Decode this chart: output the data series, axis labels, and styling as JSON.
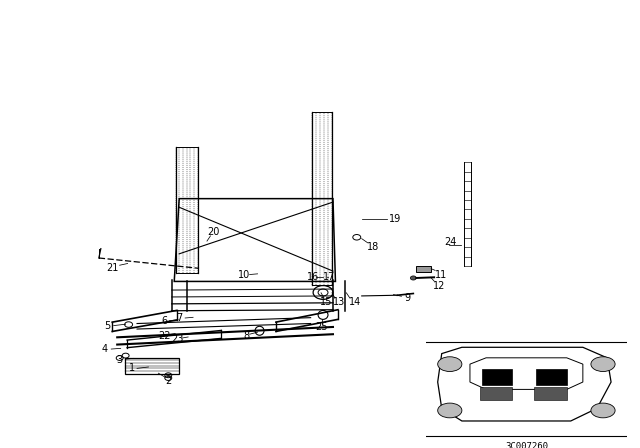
{
  "bg_color": "#ffffff",
  "line_color": "#000000",
  "watermark": "3C007260",
  "figure_width": 6.4,
  "figure_height": 4.48,
  "dpi": 100,
  "labels_data": [
    [
      1,
      0.105,
      0.088,
      0.115,
      0.088,
      0.138,
      0.092
    ],
    [
      2,
      0.178,
      0.052,
      0.172,
      0.062,
      0.158,
      0.074
    ],
    [
      3,
      0.08,
      0.113,
      0.093,
      0.115,
      0.108,
      0.117
    ],
    [
      4,
      0.05,
      0.143,
      0.063,
      0.144,
      0.082,
      0.146
    ],
    [
      5,
      0.055,
      0.21,
      0.068,
      0.212,
      0.092,
      0.216
    ],
    [
      6,
      0.17,
      0.224,
      0.18,
      0.226,
      0.198,
      0.229
    ],
    [
      7,
      0.2,
      0.234,
      0.212,
      0.234,
      0.228,
      0.236
    ],
    [
      8,
      0.335,
      0.183,
      0.342,
      0.187,
      0.358,
      0.193
    ],
    [
      9,
      0.66,
      0.293,
      0.648,
      0.297,
      0.632,
      0.302
    ],
    [
      10,
      0.33,
      0.36,
      0.342,
      0.36,
      0.358,
      0.362
    ],
    [
      11,
      0.728,
      0.36,
      0.716,
      0.372,
      0.708,
      0.377
    ],
    [
      12,
      0.724,
      0.326,
      0.714,
      0.341,
      0.707,
      0.352
    ],
    [
      13,
      0.522,
      0.279,
      0.514,
      0.292,
      0.508,
      0.307
    ],
    [
      14,
      0.554,
      0.279,
      0.544,
      0.292,
      0.537,
      0.307
    ],
    [
      15,
      0.496,
      0.279,
      0.492,
      0.292,
      0.486,
      0.307
    ],
    [
      16,
      0.47,
      0.354,
      0.476,
      0.354,
      0.49,
      0.354
    ],
    [
      17,
      0.502,
      0.354,
      0.499,
      0.354,
      0.497,
      0.354
    ],
    [
      18,
      0.59,
      0.44,
      0.58,
      0.452,
      0.568,
      0.464
    ],
    [
      19,
      0.636,
      0.52,
      0.618,
      0.522,
      0.568,
      0.522
    ],
    [
      20,
      0.27,
      0.484,
      0.263,
      0.472,
      0.256,
      0.457
    ],
    [
      21,
      0.066,
      0.38,
      0.08,
      0.387,
      0.096,
      0.392
    ],
    [
      22,
      0.17,
      0.183,
      0.18,
      0.186,
      0.192,
      0.189
    ],
    [
      23,
      0.196,
      0.173,
      0.206,
      0.176,
      0.218,
      0.179
    ],
    [
      24,
      0.746,
      0.454,
      0.743,
      0.447,
      0.768,
      0.447
    ],
    [
      25,
      0.486,
      0.209,
      0.488,
      0.217,
      0.488,
      0.23
    ]
  ]
}
